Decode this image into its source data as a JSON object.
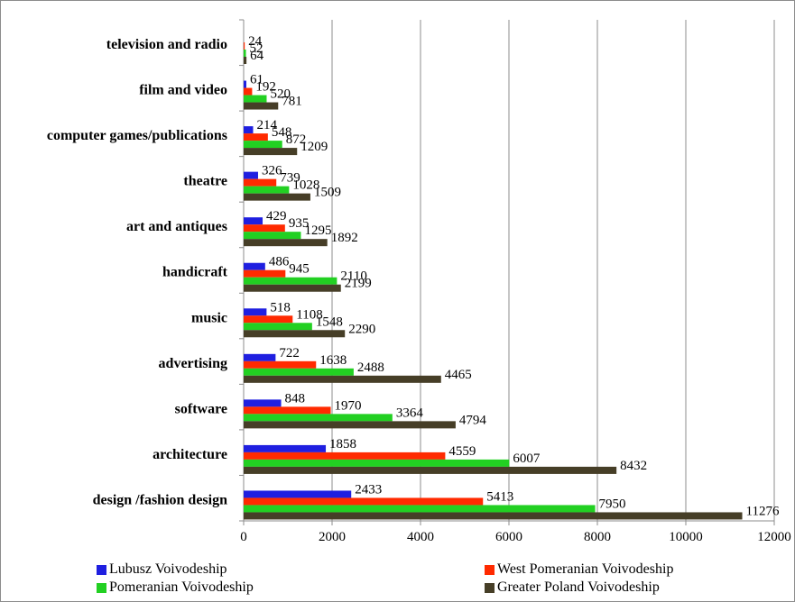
{
  "chart_data": {
    "type": "bar",
    "orientation": "horizontal",
    "categories": [
      "television and radio",
      "film and video",
      "computer games/publications",
      "theatre",
      "art and antiques",
      "handicraft",
      "music",
      "advertising",
      "software",
      "architecture",
      "design /fashion design"
    ],
    "series": [
      {
        "name": "Lubusz Voivodeship",
        "color": "#1f1fe0",
        "values": [
          null,
          61,
          214,
          326,
          429,
          486,
          518,
          722,
          848,
          1858,
          2433
        ]
      },
      {
        "name": "West Pomeranian Voivodeship",
        "color": "#ff2a00",
        "values": [
          24,
          192,
          548,
          739,
          935,
          945,
          1108,
          1638,
          1970,
          4559,
          5413
        ]
      },
      {
        "name": "Pomeranian Voivodeship",
        "color": "#22d022",
        "values": [
          52,
          520,
          872,
          1028,
          1295,
          2110,
          1548,
          2488,
          3364,
          6007,
          7950
        ]
      },
      {
        "name": "Greater Poland Voivodeship",
        "color": "#463e27",
        "values": [
          64,
          781,
          1209,
          1509,
          1892,
          2199,
          2290,
          4465,
          4794,
          8432,
          11276
        ]
      }
    ],
    "x_ticks": [
      "0",
      "2000",
      "4000",
      "6000",
      "8000",
      "10000",
      "12000"
    ],
    "xlim": [
      0,
      12000
    ],
    "grid": true,
    "legend_position": "bottom"
  }
}
